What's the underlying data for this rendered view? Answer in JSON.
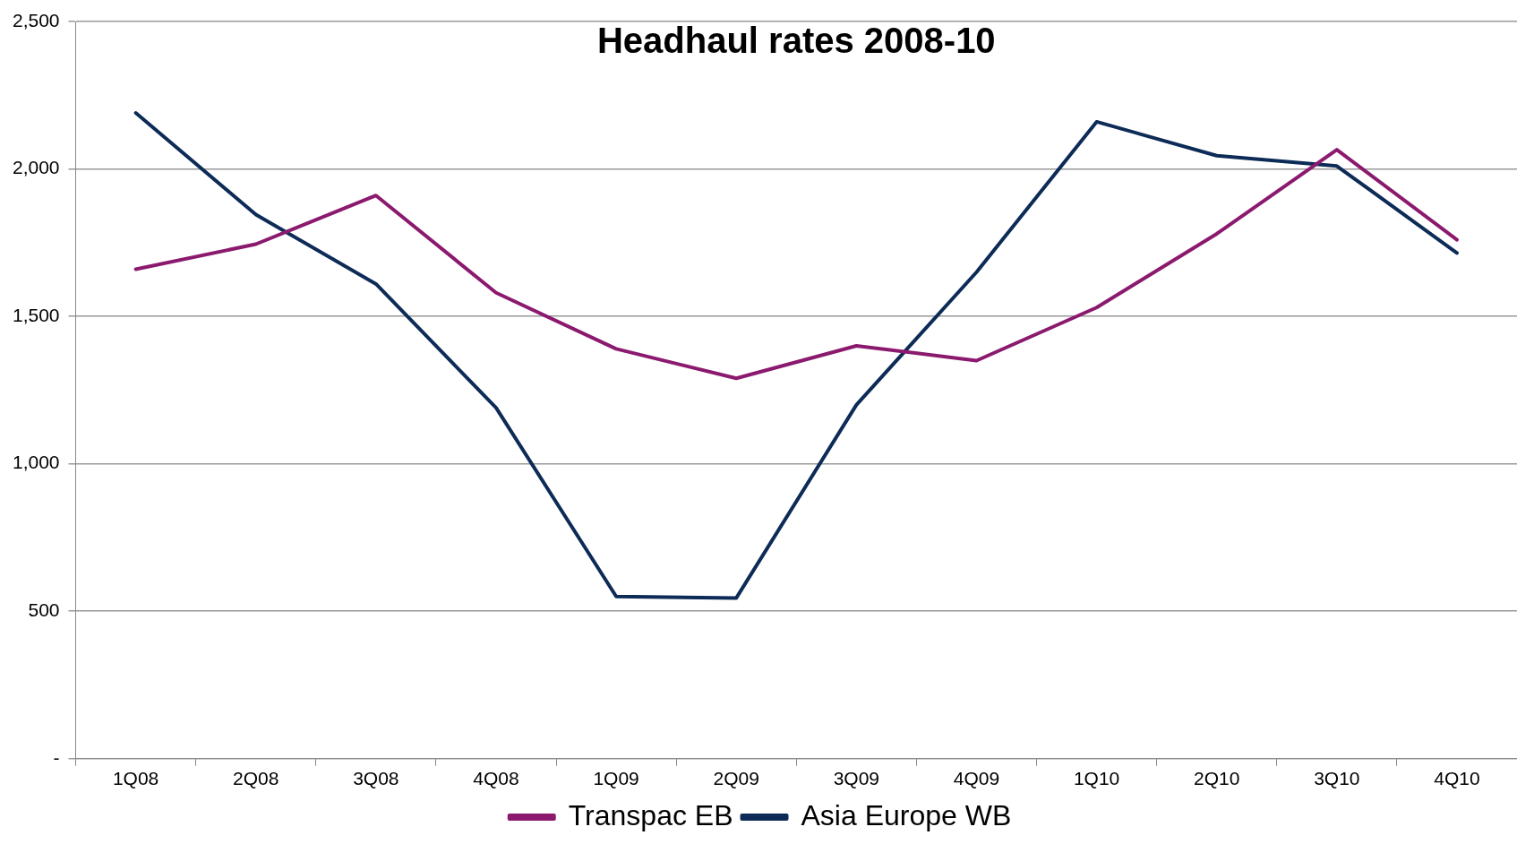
{
  "chart_data": {
    "type": "line",
    "title": "Headhaul rates 2008-10",
    "categories": [
      "1Q08",
      "2Q08",
      "3Q08",
      "4Q08",
      "1Q09",
      "2Q09",
      "3Q09",
      "4Q09",
      "1Q10",
      "2Q10",
      "3Q10",
      "4Q10"
    ],
    "series": [
      {
        "name": "Transpac EB",
        "color": "#8b1a6f",
        "values": [
          1660,
          1745,
          1910,
          1580,
          1390,
          1290,
          1400,
          1350,
          1530,
          1780,
          2065,
          1760
        ]
      },
      {
        "name": "Asia Europe WB",
        "color": "#0d2b57",
        "values": [
          2190,
          1845,
          1610,
          1190,
          550,
          545,
          1200,
          1650,
          2160,
          2045,
          2010,
          1715
        ]
      }
    ],
    "ylim": [
      0,
      2500
    ],
    "yticks": [
      {
        "value": 0,
        "label": "-"
      },
      {
        "value": 500,
        "label": "500"
      },
      {
        "value": 1000,
        "label": "1,000"
      },
      {
        "value": 1500,
        "label": "1,500"
      },
      {
        "value": 2000,
        "label": "2,000"
      },
      {
        "value": 2500,
        "label": "2,500"
      }
    ],
    "grid": "y",
    "legend": "bottom",
    "marker": "none",
    "line_style": "solid"
  }
}
